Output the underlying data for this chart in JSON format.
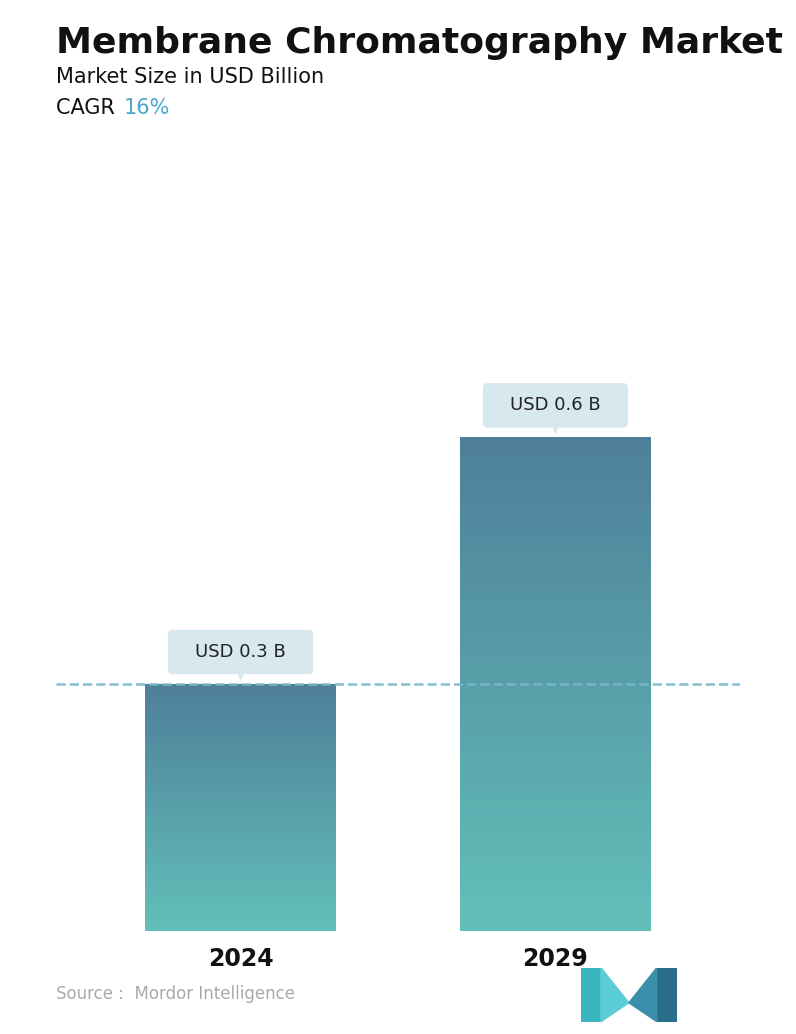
{
  "title": "Membrane Chromatography Market",
  "subtitle": "Market Size in USD Billion",
  "cagr_label": "CAGR  ",
  "cagr_value": "16%",
  "cagr_color": "#4da6d0",
  "categories": [
    "2024",
    "2029"
  ],
  "values": [
    0.3,
    0.6
  ],
  "bar_labels": [
    "USD 0.3 B",
    "USD 0.6 B"
  ],
  "bar_color_top": "#4e7f9a",
  "bar_color_bottom": "#62bfb8",
  "dashed_line_color": "#7ab8cc",
  "dashed_line_value": 0.3,
  "source_text": "Source :  Mordor Intelligence",
  "background_color": "#ffffff",
  "title_fontsize": 26,
  "subtitle_fontsize": 15,
  "cagr_fontsize": 15,
  "bar_label_fontsize": 13,
  "xtick_fontsize": 17,
  "source_fontsize": 12,
  "ylim": [
    0,
    0.78
  ],
  "x_positions": [
    0.27,
    0.73
  ],
  "bar_width": 0.28
}
